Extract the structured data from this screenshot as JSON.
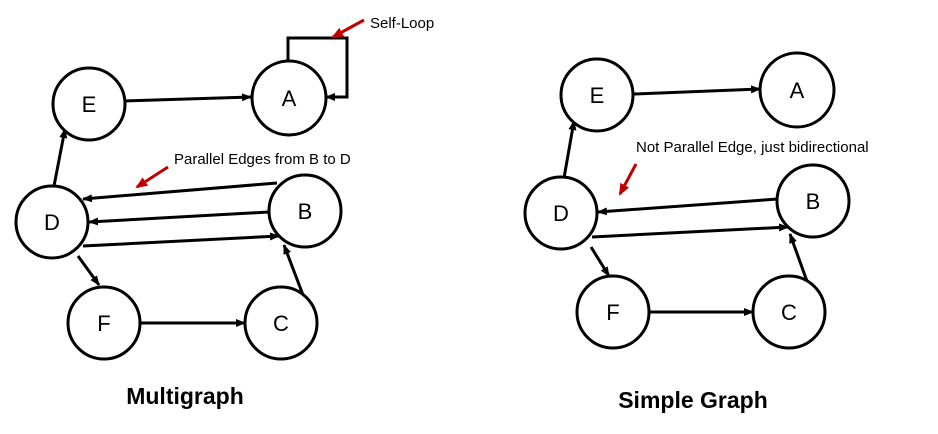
{
  "colors": {
    "ink": "#000000",
    "annotation_arrow": "#c00000",
    "background": "#ffffff"
  },
  "graphs": [
    {
      "caption": "Multigraph",
      "nodes": [
        {
          "id": "A",
          "label": "A"
        },
        {
          "id": "B",
          "label": "B"
        },
        {
          "id": "C",
          "label": "C"
        },
        {
          "id": "D",
          "label": "D"
        },
        {
          "id": "E",
          "label": "E"
        },
        {
          "id": "F",
          "label": "F"
        }
      ],
      "edges": [
        {
          "from": "E",
          "to": "A"
        },
        {
          "from": "A",
          "to": "A",
          "kind": "self-loop"
        },
        {
          "from": "D",
          "to": "E"
        },
        {
          "from": "B",
          "to": "D"
        },
        {
          "from": "B",
          "to": "D"
        },
        {
          "from": "D",
          "to": "B"
        },
        {
          "from": "D",
          "to": "F"
        },
        {
          "from": "F",
          "to": "C"
        },
        {
          "from": "C",
          "to": "B"
        }
      ],
      "annotations": [
        "Self-Loop",
        "Parallel Edges from B to D"
      ]
    },
    {
      "caption": "Simple Graph",
      "nodes": [
        {
          "id": "A",
          "label": "A"
        },
        {
          "id": "B",
          "label": "B"
        },
        {
          "id": "C",
          "label": "C"
        },
        {
          "id": "D",
          "label": "D"
        },
        {
          "id": "E",
          "label": "E"
        },
        {
          "id": "F",
          "label": "F"
        }
      ],
      "edges": [
        {
          "from": "E",
          "to": "A"
        },
        {
          "from": "D",
          "to": "E"
        },
        {
          "from": "B",
          "to": "D"
        },
        {
          "from": "D",
          "to": "B"
        },
        {
          "from": "D",
          "to": "F"
        },
        {
          "from": "F",
          "to": "C"
        },
        {
          "from": "C",
          "to": "B"
        }
      ],
      "annotations": [
        "Not Parallel Edge, just bidirectional"
      ]
    }
  ]
}
